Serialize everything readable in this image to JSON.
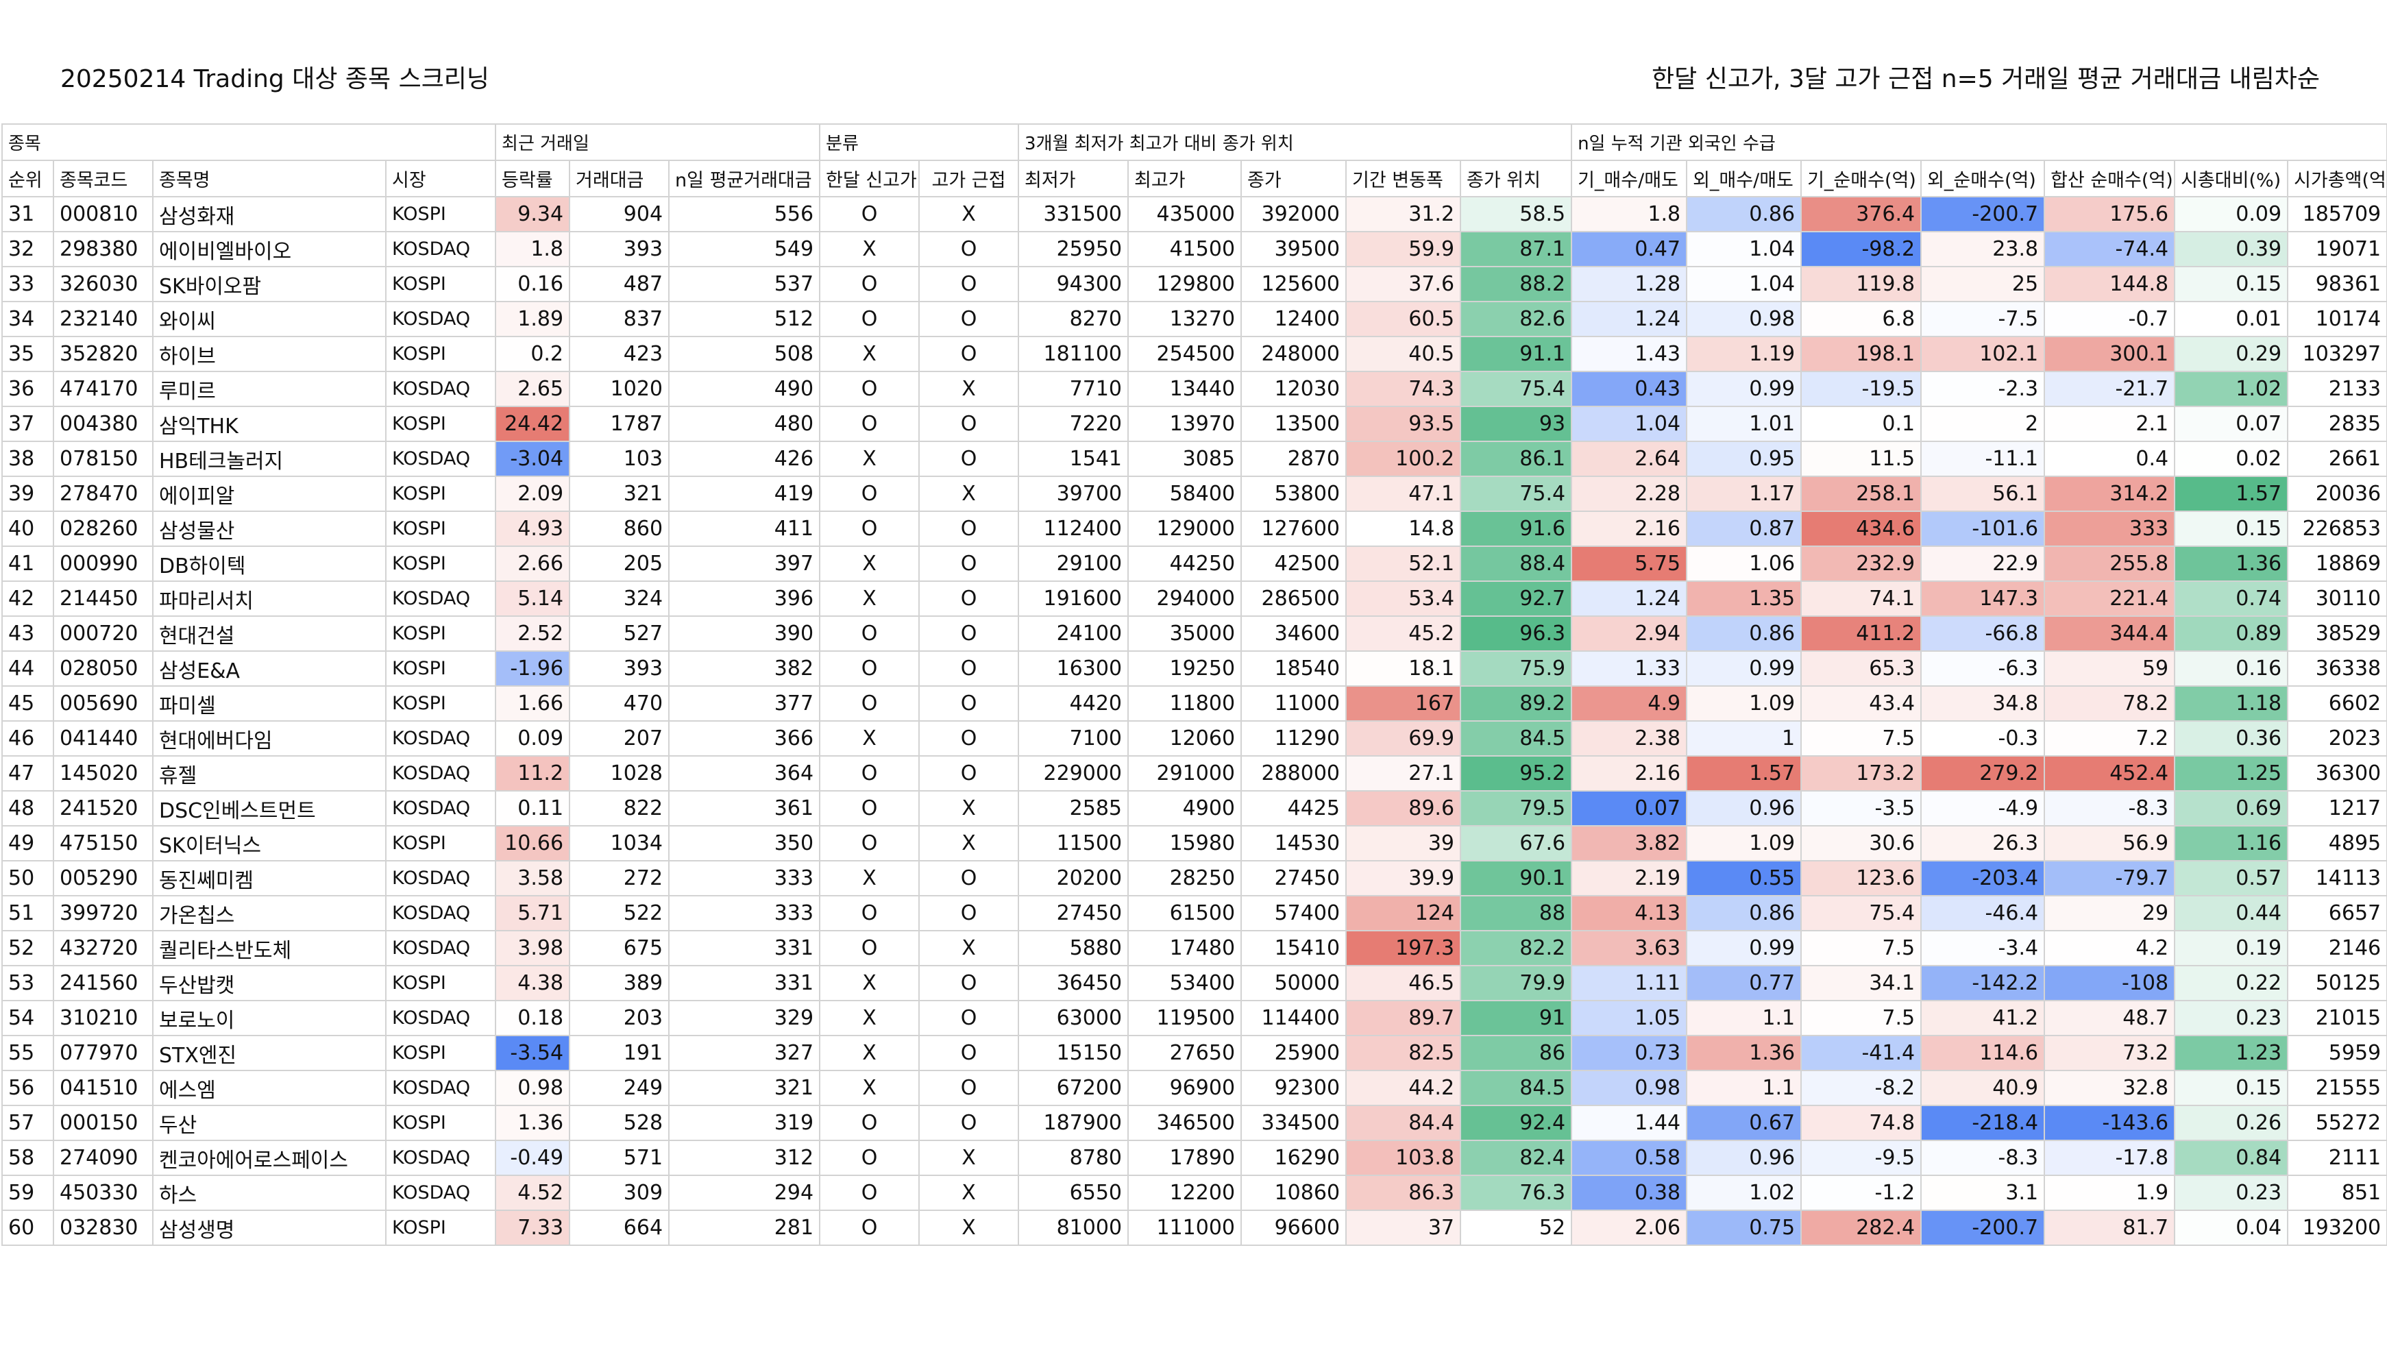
{
  "title": {
    "left": "20250214 Trading 대상 종목 스크리닝",
    "right": "한달 신고가, 3달 고가 근접 n=5 거래일 평균 거래대금 내림차순"
  },
  "groups": [
    "종목",
    "최근 거래일",
    "분류",
    "3개월 최저가 최고가 대비 종가 위치",
    "n일 누적 기관 외국인 수급"
  ],
  "headers": [
    "순위",
    "종목코드",
    "종목명",
    "시장",
    "등락률",
    "거래대금",
    "n일 평균거래대금",
    "한달 신고가",
    "고가 근접",
    "최저가",
    "최고가",
    "종가",
    "기간 변동폭",
    "종가 위치",
    "기_매수/매도",
    "외_매수/매도",
    "기_순매수(억)",
    "외_순매수(억)",
    "합산 순매수(억)",
    "시총대비(%)",
    "시가총액(억)"
  ],
  "rows": [
    [
      "31",
      "000810",
      "삼성화재",
      "KOSPI",
      "9.34",
      "904",
      "556",
      "O",
      "X",
      "331500",
      "435000",
      "392000",
      "31.2",
      "58.5",
      "1.8",
      "0.86",
      "376.4",
      "-200.7",
      "175.6",
      "0.09",
      "185709"
    ],
    [
      "32",
      "298380",
      "에이비엘바이오",
      "KOSDAQ",
      "1.8",
      "393",
      "549",
      "X",
      "O",
      "25950",
      "41500",
      "39500",
      "59.9",
      "87.1",
      "0.47",
      "1.04",
      "-98.2",
      "23.8",
      "-74.4",
      "0.39",
      "19071"
    ],
    [
      "33",
      "326030",
      "SK바이오팜",
      "KOSPI",
      "0.16",
      "487",
      "537",
      "O",
      "O",
      "94300",
      "129800",
      "125600",
      "37.6",
      "88.2",
      "1.28",
      "1.04",
      "119.8",
      "25",
      "144.8",
      "0.15",
      "98361"
    ],
    [
      "34",
      "232140",
      "와이씨",
      "KOSDAQ",
      "1.89",
      "837",
      "512",
      "O",
      "O",
      "8270",
      "13270",
      "12400",
      "60.5",
      "82.6",
      "1.24",
      "0.98",
      "6.8",
      "-7.5",
      "-0.7",
      "0.01",
      "10174"
    ],
    [
      "35",
      "352820",
      "하이브",
      "KOSPI",
      "0.2",
      "423",
      "508",
      "X",
      "O",
      "181100",
      "254500",
      "248000",
      "40.5",
      "91.1",
      "1.43",
      "1.19",
      "198.1",
      "102.1",
      "300.1",
      "0.29",
      "103297"
    ],
    [
      "36",
      "474170",
      "루미르",
      "KOSDAQ",
      "2.65",
      "1020",
      "490",
      "O",
      "X",
      "7710",
      "13440",
      "12030",
      "74.3",
      "75.4",
      "0.43",
      "0.99",
      "-19.5",
      "-2.3",
      "-21.7",
      "1.02",
      "2133"
    ],
    [
      "37",
      "004380",
      "삼익THK",
      "KOSPI",
      "24.42",
      "1787",
      "480",
      "O",
      "O",
      "7220",
      "13970",
      "13500",
      "93.5",
      "93",
      "1.04",
      "1.01",
      "0.1",
      "2",
      "2.1",
      "0.07",
      "2835"
    ],
    [
      "38",
      "078150",
      "HB테크놀러지",
      "KOSDAQ",
      "-3.04",
      "103",
      "426",
      "X",
      "O",
      "1541",
      "3085",
      "2870",
      "100.2",
      "86.1",
      "2.64",
      "0.95",
      "11.5",
      "-11.1",
      "0.4",
      "0.02",
      "2661"
    ],
    [
      "39",
      "278470",
      "에이피알",
      "KOSPI",
      "2.09",
      "321",
      "419",
      "O",
      "X",
      "39700",
      "58400",
      "53800",
      "47.1",
      "75.4",
      "2.28",
      "1.17",
      "258.1",
      "56.1",
      "314.2",
      "1.57",
      "20036"
    ],
    [
      "40",
      "028260",
      "삼성물산",
      "KOSPI",
      "4.93",
      "860",
      "411",
      "O",
      "O",
      "112400",
      "129000",
      "127600",
      "14.8",
      "91.6",
      "2.16",
      "0.87",
      "434.6",
      "-101.6",
      "333",
      "0.15",
      "226853"
    ],
    [
      "41",
      "000990",
      "DB하이텍",
      "KOSPI",
      "2.66",
      "205",
      "397",
      "X",
      "O",
      "29100",
      "44250",
      "42500",
      "52.1",
      "88.4",
      "5.75",
      "1.06",
      "232.9",
      "22.9",
      "255.8",
      "1.36",
      "18869"
    ],
    [
      "42",
      "214450",
      "파마리서치",
      "KOSDAQ",
      "5.14",
      "324",
      "396",
      "X",
      "O",
      "191600",
      "294000",
      "286500",
      "53.4",
      "92.7",
      "1.24",
      "1.35",
      "74.1",
      "147.3",
      "221.4",
      "0.74",
      "30110"
    ],
    [
      "43",
      "000720",
      "현대건설",
      "KOSPI",
      "2.52",
      "527",
      "390",
      "O",
      "O",
      "24100",
      "35000",
      "34600",
      "45.2",
      "96.3",
      "2.94",
      "0.86",
      "411.2",
      "-66.8",
      "344.4",
      "0.89",
      "38529"
    ],
    [
      "44",
      "028050",
      "삼성E&A",
      "KOSPI",
      "-1.96",
      "393",
      "382",
      "O",
      "O",
      "16300",
      "19250",
      "18540",
      "18.1",
      "75.9",
      "1.33",
      "0.99",
      "65.3",
      "-6.3",
      "59",
      "0.16",
      "36338"
    ],
    [
      "45",
      "005690",
      "파미셀",
      "KOSPI",
      "1.66",
      "470",
      "377",
      "O",
      "O",
      "4420",
      "11800",
      "11000",
      "167",
      "89.2",
      "4.9",
      "1.09",
      "43.4",
      "34.8",
      "78.2",
      "1.18",
      "6602"
    ],
    [
      "46",
      "041440",
      "현대에버다임",
      "KOSDAQ",
      "0.09",
      "207",
      "366",
      "X",
      "O",
      "7100",
      "12060",
      "11290",
      "69.9",
      "84.5",
      "2.38",
      "1",
      "7.5",
      "-0.3",
      "7.2",
      "0.36",
      "2023"
    ],
    [
      "47",
      "145020",
      "휴젤",
      "KOSDAQ",
      "11.2",
      "1028",
      "364",
      "O",
      "O",
      "229000",
      "291000",
      "288000",
      "27.1",
      "95.2",
      "2.16",
      "1.57",
      "173.2",
      "279.2",
      "452.4",
      "1.25",
      "36300"
    ],
    [
      "48",
      "241520",
      "DSC인베스트먼트",
      "KOSDAQ",
      "0.11",
      "822",
      "361",
      "O",
      "X",
      "2585",
      "4900",
      "4425",
      "89.6",
      "79.5",
      "0.07",
      "0.96",
      "-3.5",
      "-4.9",
      "-8.3",
      "0.69",
      "1217"
    ],
    [
      "49",
      "475150",
      "SK이터닉스",
      "KOSPI",
      "10.66",
      "1034",
      "350",
      "O",
      "X",
      "11500",
      "15980",
      "14530",
      "39",
      "67.6",
      "3.82",
      "1.09",
      "30.6",
      "26.3",
      "56.9",
      "1.16",
      "4895"
    ],
    [
      "50",
      "005290",
      "동진쎄미켐",
      "KOSDAQ",
      "3.58",
      "272",
      "333",
      "X",
      "O",
      "20200",
      "28250",
      "27450",
      "39.9",
      "90.1",
      "2.19",
      "0.55",
      "123.6",
      "-203.4",
      "-79.7",
      "0.57",
      "14113"
    ],
    [
      "51",
      "399720",
      "가온칩스",
      "KOSDAQ",
      "5.71",
      "522",
      "333",
      "O",
      "O",
      "27450",
      "61500",
      "57400",
      "124",
      "88",
      "4.13",
      "0.86",
      "75.4",
      "-46.4",
      "29",
      "0.44",
      "6657"
    ],
    [
      "52",
      "432720",
      "퀄리타스반도체",
      "KOSDAQ",
      "3.98",
      "675",
      "331",
      "O",
      "X",
      "5880",
      "17480",
      "15410",
      "197.3",
      "82.2",
      "3.63",
      "0.99",
      "7.5",
      "-3.4",
      "4.2",
      "0.19",
      "2146"
    ],
    [
      "53",
      "241560",
      "두산밥캣",
      "KOSPI",
      "4.38",
      "389",
      "331",
      "X",
      "O",
      "36450",
      "53400",
      "50000",
      "46.5",
      "79.9",
      "1.11",
      "0.77",
      "34.1",
      "-142.2",
      "-108",
      "0.22",
      "50125"
    ],
    [
      "54",
      "310210",
      "보로노이",
      "KOSDAQ",
      "0.18",
      "203",
      "329",
      "X",
      "O",
      "63000",
      "119500",
      "114400",
      "89.7",
      "91",
      "1.05",
      "1.1",
      "7.5",
      "41.2",
      "48.7",
      "0.23",
      "21015"
    ],
    [
      "55",
      "077970",
      "STX엔진",
      "KOSPI",
      "-3.54",
      "191",
      "327",
      "X",
      "O",
      "15150",
      "27650",
      "25900",
      "82.5",
      "86",
      "0.73",
      "1.36",
      "-41.4",
      "114.6",
      "73.2",
      "1.23",
      "5959"
    ],
    [
      "56",
      "041510",
      "에스엠",
      "KOSDAQ",
      "0.98",
      "249",
      "321",
      "X",
      "O",
      "67200",
      "96900",
      "92300",
      "44.2",
      "84.5",
      "0.98",
      "1.1",
      "-8.2",
      "40.9",
      "32.8",
      "0.15",
      "21555"
    ],
    [
      "57",
      "000150",
      "두산",
      "KOSPI",
      "1.36",
      "528",
      "319",
      "O",
      "O",
      "187900",
      "346500",
      "334500",
      "84.4",
      "92.4",
      "1.44",
      "0.67",
      "74.8",
      "-218.4",
      "-143.6",
      "0.26",
      "55272"
    ],
    [
      "58",
      "274090",
      "켄코아에어로스페이스",
      "KOSDAQ",
      "-0.49",
      "571",
      "312",
      "O",
      "X",
      "8780",
      "17890",
      "16290",
      "103.8",
      "82.4",
      "0.58",
      "0.96",
      "-9.5",
      "-8.3",
      "-17.8",
      "0.84",
      "2111"
    ],
    [
      "59",
      "450330",
      "하스",
      "KOSDAQ",
      "4.52",
      "309",
      "294",
      "O",
      "X",
      "6550",
      "12200",
      "10860",
      "86.3",
      "76.3",
      "0.38",
      "1.02",
      "-1.2",
      "3.1",
      "1.9",
      "0.23",
      "851"
    ],
    [
      "60",
      "032830",
      "삼성생명",
      "KOSPI",
      "7.33",
      "664",
      "281",
      "O",
      "X",
      "81000",
      "111000",
      "96600",
      "37",
      "52",
      "2.06",
      "0.75",
      "282.4",
      "-200.7",
      "81.7",
      "0.04",
      "193200"
    ]
  ]
}
